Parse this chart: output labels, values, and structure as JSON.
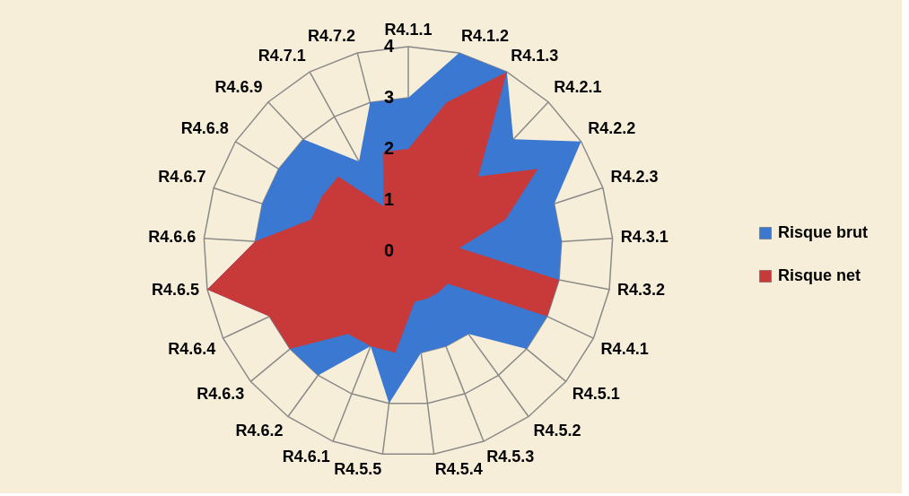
{
  "chart_data": {
    "type": "radar",
    "categories": [
      "R4.1.1",
      "R4.1.2",
      "R4.1.3",
      "R4.2.1",
      "R4.2.2",
      "R4.2.3",
      "R4.3.1",
      "R4.3.2",
      "R4.4.1",
      "R4.5.1",
      "R4.5.2",
      "R4.5.3",
      "R4.5.4",
      "R4.5.5",
      "R4.6.1",
      "R4.6.2",
      "R4.6.3",
      "R4.6.4",
      "R4.6.5",
      "R4.6.6",
      "R4.6.7",
      "R4.6.8",
      "R4.6.9",
      "R4.7.1",
      "R4.7.2"
    ],
    "series": [
      {
        "name": "Risque brut",
        "color": "#3a78d2",
        "values": [
          3,
          4,
          4,
          3,
          4,
          3,
          3,
          3,
          3,
          3,
          2,
          2,
          2,
          3,
          2,
          3,
          3,
          3,
          4,
          3,
          3,
          3,
          3,
          2,
          3
        ]
      },
      {
        "name": "Risque net",
        "color": "#c83a3a",
        "values": [
          2,
          3,
          4,
          2,
          3,
          2,
          1,
          3,
          3,
          1,
          1,
          1,
          1,
          2,
          2,
          2,
          3,
          3,
          4,
          3,
          2,
          2,
          2,
          1,
          2
        ]
      }
    ],
    "ylim": [
      0,
      4
    ],
    "yticks": [
      0,
      1,
      2,
      3,
      4
    ],
    "grid": true,
    "legend": "right"
  }
}
